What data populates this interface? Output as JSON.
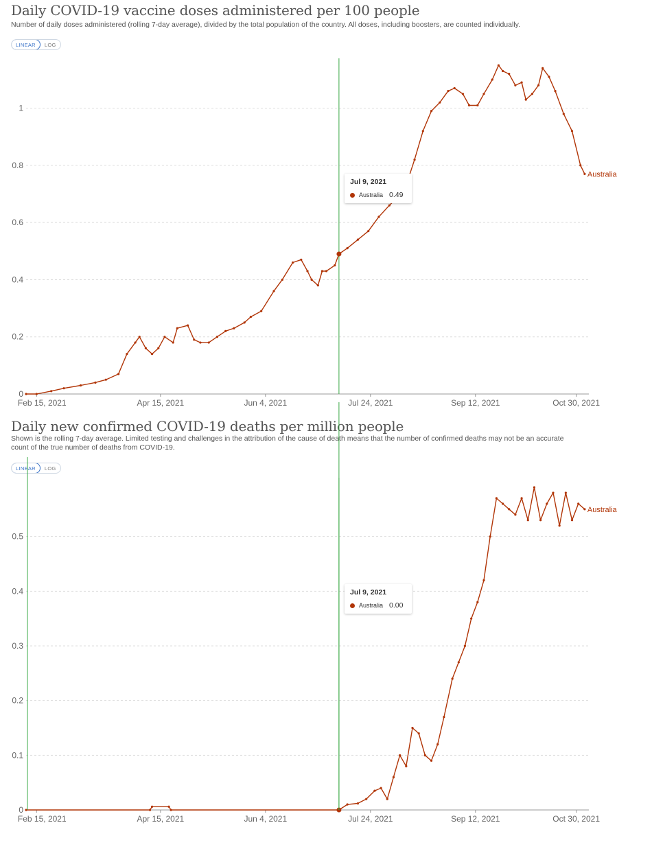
{
  "colors": {
    "series": "#b13507",
    "hover_line": "#3aa845",
    "grid": "#dddddd",
    "toggle_active": "#3a73c8"
  },
  "chart_data": [
    {
      "type": "line",
      "title": "Daily COVID-19 vaccine doses administered per 100 people",
      "subtitle": "Number of daily doses administered (rolling 7-day average), divided by the total population of the country. All doses, including boosters, are counted individually.",
      "scale_options": [
        "LINEAR",
        "LOG"
      ],
      "scale_selected": "LINEAR",
      "x_range": [
        "2021-02-10",
        "2021-11-05"
      ],
      "x_ticks": [
        "Feb 15, 2021",
        "Apr 15, 2021",
        "Jun 4, 2021",
        "Jul 24, 2021",
        "Sep 12, 2021",
        "Oct 30, 2021"
      ],
      "y_ticks": [
        0,
        0.2,
        0.4,
        0.6,
        0.8,
        1
      ],
      "y_tick_labels": [
        "0",
        "0.2",
        "0.4",
        "0.6",
        "0.8",
        "1"
      ],
      "ylim": [
        0,
        1.16
      ],
      "grid": true,
      "series": [
        {
          "name": "Australia",
          "points": [
            [
              "2021-02-10",
              0
            ],
            [
              "2021-02-15",
              0
            ],
            [
              "2021-02-22",
              0.01
            ],
            [
              "2021-02-28",
              0.02
            ],
            [
              "2021-03-08",
              0.03
            ],
            [
              "2021-03-15",
              0.04
            ],
            [
              "2021-03-20",
              0.05
            ],
            [
              "2021-03-26",
              0.07
            ],
            [
              "2021-03-30",
              0.14
            ],
            [
              "2021-04-03",
              0.18
            ],
            [
              "2021-04-05",
              0.2
            ],
            [
              "2021-04-08",
              0.16
            ],
            [
              "2021-04-11",
              0.14
            ],
            [
              "2021-04-14",
              0.16
            ],
            [
              "2021-04-17",
              0.2
            ],
            [
              "2021-04-21",
              0.18
            ],
            [
              "2021-04-23",
              0.23
            ],
            [
              "2021-04-28",
              0.24
            ],
            [
              "2021-05-01",
              0.19
            ],
            [
              "2021-05-04",
              0.18
            ],
            [
              "2021-05-08",
              0.18
            ],
            [
              "2021-05-12",
              0.2
            ],
            [
              "2021-05-16",
              0.22
            ],
            [
              "2021-05-20",
              0.23
            ],
            [
              "2021-05-25",
              0.25
            ],
            [
              "2021-05-28",
              0.27
            ],
            [
              "2021-06-02",
              0.29
            ],
            [
              "2021-06-08",
              0.36
            ],
            [
              "2021-06-12",
              0.4
            ],
            [
              "2021-06-17",
              0.46
            ],
            [
              "2021-06-21",
              0.47
            ],
            [
              "2021-06-24",
              0.43
            ],
            [
              "2021-06-26",
              0.4
            ],
            [
              "2021-06-29",
              0.38
            ],
            [
              "2021-07-01",
              0.43
            ],
            [
              "2021-07-03",
              0.43
            ],
            [
              "2021-07-07",
              0.45
            ],
            [
              "2021-07-09",
              0.49
            ],
            [
              "2021-07-13",
              0.51
            ],
            [
              "2021-07-18",
              0.54
            ],
            [
              "2021-07-23",
              0.57
            ],
            [
              "2021-07-28",
              0.62
            ],
            [
              "2021-08-02",
              0.66
            ],
            [
              "2021-08-06",
              0.69
            ],
            [
              "2021-08-10",
              0.73
            ],
            [
              "2021-08-14",
              0.82
            ],
            [
              "2021-08-18",
              0.92
            ],
            [
              "2021-08-22",
              0.99
            ],
            [
              "2021-08-26",
              1.02
            ],
            [
              "2021-08-30",
              1.06
            ],
            [
              "2021-09-02",
              1.07
            ],
            [
              "2021-09-06",
              1.05
            ],
            [
              "2021-09-09",
              1.01
            ],
            [
              "2021-09-13",
              1.01
            ],
            [
              "2021-09-16",
              1.05
            ],
            [
              "2021-09-20",
              1.1
            ],
            [
              "2021-09-23",
              1.15
            ],
            [
              "2021-09-25",
              1.13
            ],
            [
              "2021-09-28",
              1.12
            ],
            [
              "2021-10-01",
              1.08
            ],
            [
              "2021-10-04",
              1.09
            ],
            [
              "2021-10-06",
              1.03
            ],
            [
              "2021-10-09",
              1.05
            ],
            [
              "2021-10-12",
              1.08
            ],
            [
              "2021-10-14",
              1.14
            ],
            [
              "2021-10-17",
              1.11
            ],
            [
              "2021-10-20",
              1.06
            ],
            [
              "2021-10-24",
              0.98
            ],
            [
              "2021-10-28",
              0.92
            ],
            [
              "2021-11-01",
              0.8
            ],
            [
              "2021-11-03",
              0.77
            ]
          ]
        }
      ],
      "series_label": "Australia",
      "tooltip": {
        "date": "Jul 9, 2021",
        "series": "Australia",
        "value": "0.49"
      }
    },
    {
      "type": "line",
      "title": "Daily new confirmed COVID-19 deaths per million people",
      "subtitle": "Shown is the rolling 7-day average. Limited testing and challenges in the attribution of the cause of death means that the number of confirmed deaths may not be an accurate count of the true number of deaths from COVID-19.",
      "scale_options": [
        "LINEAR",
        "LOG"
      ],
      "scale_selected": "LINEAR",
      "x_range": [
        "2021-02-10",
        "2021-11-05"
      ],
      "x_ticks": [
        "Feb 15, 2021",
        "Apr 15, 2021",
        "Jun 4, 2021",
        "Jul 24, 2021",
        "Sep 12, 2021",
        "Oct 30, 2021"
      ],
      "y_ticks": [
        0,
        0.1,
        0.2,
        0.3,
        0.4,
        0.5
      ],
      "y_tick_labels": [
        "0",
        "0.1",
        "0.2",
        "0.3",
        "0.4",
        "0.5"
      ],
      "ylim": [
        0,
        0.6
      ],
      "grid": true,
      "series": [
        {
          "name": "Australia",
          "points": [
            [
              "2021-02-10",
              0
            ],
            [
              "2021-04-10",
              0
            ],
            [
              "2021-04-11",
              0.006
            ],
            [
              "2021-04-19",
              0.006
            ],
            [
              "2021-04-20",
              0
            ],
            [
              "2021-07-09",
              0
            ],
            [
              "2021-07-13",
              0.01
            ],
            [
              "2021-07-18",
              0.012
            ],
            [
              "2021-07-22",
              0.02
            ],
            [
              "2021-07-26",
              0.035
            ],
            [
              "2021-07-29",
              0.04
            ],
            [
              "2021-08-01",
              0.02
            ],
            [
              "2021-08-04",
              0.06
            ],
            [
              "2021-08-07",
              0.1
            ],
            [
              "2021-08-10",
              0.08
            ],
            [
              "2021-08-13",
              0.15
            ],
            [
              "2021-08-16",
              0.14
            ],
            [
              "2021-08-19",
              0.1
            ],
            [
              "2021-08-22",
              0.09
            ],
            [
              "2021-08-25",
              0.12
            ],
            [
              "2021-08-28",
              0.17
            ],
            [
              "2021-09-01",
              0.24
            ],
            [
              "2021-09-04",
              0.27
            ],
            [
              "2021-09-07",
              0.3
            ],
            [
              "2021-09-10",
              0.35
            ],
            [
              "2021-09-13",
              0.38
            ],
            [
              "2021-09-16",
              0.42
            ],
            [
              "2021-09-19",
              0.5
            ],
            [
              "2021-09-22",
              0.57
            ],
            [
              "2021-09-25",
              0.56
            ],
            [
              "2021-09-28",
              0.55
            ],
            [
              "2021-10-01",
              0.54
            ],
            [
              "2021-10-04",
              0.57
            ],
            [
              "2021-10-07",
              0.53
            ],
            [
              "2021-10-10",
              0.59
            ],
            [
              "2021-10-13",
              0.53
            ],
            [
              "2021-10-16",
              0.56
            ],
            [
              "2021-10-19",
              0.58
            ],
            [
              "2021-10-22",
              0.52
            ],
            [
              "2021-10-25",
              0.58
            ],
            [
              "2021-10-28",
              0.53
            ],
            [
              "2021-10-31",
              0.56
            ],
            [
              "2021-11-03",
              0.55
            ]
          ]
        }
      ],
      "series_label": "Australia",
      "tooltip": {
        "date": "Jul 9, 2021",
        "series": "Australia",
        "value": "0.00"
      }
    }
  ],
  "hover_date": "2021-07-09"
}
